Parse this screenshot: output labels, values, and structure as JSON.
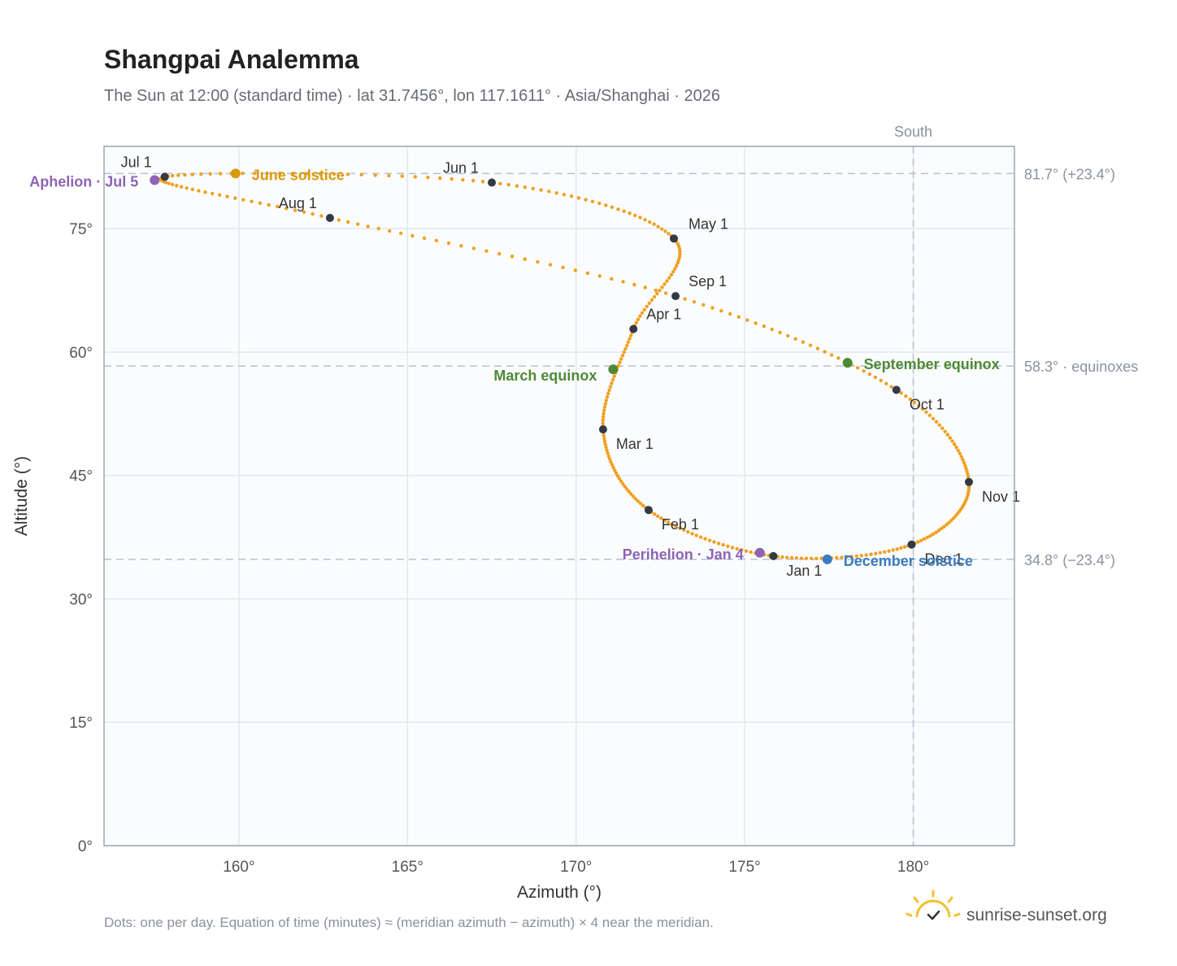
{
  "header": {
    "title": "Shangpai Analemma",
    "subtitle": "The Sun at 12:00 (standard time) · lat 31.7456°, lon 117.1611° · Asia/Shanghai · 2026"
  },
  "colors": {
    "path": "#f0a020",
    "month_marker": "#333a44",
    "solstice_june": "#d99a0a",
    "equinox": "#4e8a34",
    "solstice_december": "#3b7bbf",
    "apsis": "#8e63b5",
    "grid": "#e3e8ee",
    "reference_line": "#b7c3d0",
    "plot_background": "#fafcfe",
    "frame": "#9aa5b4"
  },
  "chart_data": {
    "type": "scatter",
    "xlabel": "Azimuth (°)",
    "ylabel": "Altitude (°)",
    "xlim": [
      156,
      183
    ],
    "ylim": [
      0,
      85
    ],
    "x_ticks": [
      "160°",
      "165°",
      "170°",
      "175°",
      "180°"
    ],
    "x_tick_values": [
      160,
      165,
      170,
      175,
      180
    ],
    "y_ticks": [
      "0°",
      "15°",
      "30°",
      "45°",
      "60°",
      "75°"
    ],
    "y_tick_values": [
      0,
      15,
      30,
      45,
      60,
      75
    ],
    "grid": true,
    "reference_lines": {
      "horizontal": [
        {
          "value": 81.7,
          "label": "81.7° (+23.4°)"
        },
        {
          "value": 58.3,
          "label": "58.3° · equinoxes"
        },
        {
          "value": 34.8,
          "label": "34.8° (−23.4°)"
        }
      ],
      "vertical": [
        {
          "value": 180,
          "label": "South"
        }
      ]
    },
    "month_markers": [
      {
        "label": "Jan 1",
        "azimuth": 175.85,
        "altitude": 35.2
      },
      {
        "label": "Feb 1",
        "azimuth": 172.15,
        "altitude": 40.8
      },
      {
        "label": "Mar 1",
        "azimuth": 170.8,
        "altitude": 50.6
      },
      {
        "label": "Apr 1",
        "azimuth": 171.7,
        "altitude": 62.8
      },
      {
        "label": "May 1",
        "azimuth": 172.9,
        "altitude": 73.8
      },
      {
        "label": "Jun 1",
        "azimuth": 167.5,
        "altitude": 80.6
      },
      {
        "label": "Jul 1",
        "azimuth": 157.8,
        "altitude": 81.3
      },
      {
        "label": "Aug 1",
        "azimuth": 162.7,
        "altitude": 76.3
      },
      {
        "label": "Sep 1",
        "azimuth": 172.95,
        "altitude": 66.8
      },
      {
        "label": "Oct 1",
        "azimuth": 179.5,
        "altitude": 55.4
      },
      {
        "label": "Nov 1",
        "azimuth": 181.65,
        "altitude": 44.2
      },
      {
        "label": "Dec 1",
        "azimuth": 179.95,
        "altitude": 36.6
      }
    ],
    "events": [
      {
        "label": "June solstice",
        "azimuth": 159.9,
        "altitude": 81.7,
        "color_key": "solstice_june"
      },
      {
        "label": "Aphelion · Jul 5",
        "azimuth": 157.5,
        "altitude": 80.9,
        "color_key": "apsis"
      },
      {
        "label": "March equinox",
        "azimuth": 171.1,
        "altitude": 57.9,
        "color_key": "equinox"
      },
      {
        "label": "September equinox",
        "azimuth": 178.05,
        "altitude": 58.7,
        "color_key": "equinox"
      },
      {
        "label": "Perihelion · Jan 4",
        "azimuth": 175.45,
        "altitude": 35.6,
        "color_key": "apsis"
      },
      {
        "label": "December solstice",
        "azimuth": 177.45,
        "altitude": 34.8,
        "color_key": "solstice_december"
      }
    ]
  },
  "footer": {
    "note": "Dots: one per day. Equation of time (minutes) ≈ (meridian azimuth − azimuth) × 4 near the meridian.",
    "brand": "sunrise-sunset.org",
    "brand_icon": "sun-logo-icon"
  }
}
